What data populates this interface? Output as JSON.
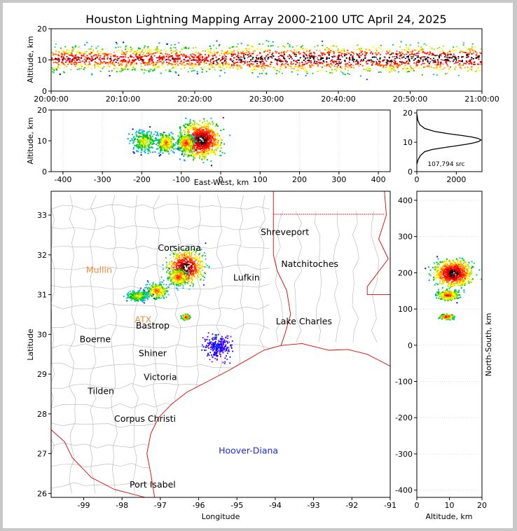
{
  "title": "Houston Lightning Mapping Array 2000-2100 UTC April 24, 2025",
  "colors": {
    "density": [
      "#7f00ff",
      "#0000ff",
      "#00a0ff",
      "#00d0a0",
      "#00c000",
      "#a0e000",
      "#ffff00",
      "#ffa000",
      "#ff4000",
      "#ff0000",
      "#c00000",
      "#000000",
      "#ffffff"
    ],
    "state_line": "#e00000",
    "county_line": "#b4b4b4",
    "city_orange": "#f08c3c",
    "city_blue": "#1e28dc",
    "city_gold": "#e6b400"
  },
  "chart_data": [
    {
      "type": "heatmap",
      "name": "altitude-time",
      "xlabel": "",
      "ylabel": "Altitude, km",
      "xticks": [
        "20:00:00",
        "20:10:00",
        "20:20:00",
        "20:30:00",
        "20:40:00",
        "20:50:00",
        "21:00:00"
      ],
      "xlim_minutes": [
        0,
        60
      ],
      "ylim": [
        0,
        20
      ],
      "yticks": [
        0,
        10,
        20
      ],
      "band_center_km": 10.5,
      "band_core_halfwidth_km": 2,
      "band_outer_halfwidth_km": 5.5
    },
    {
      "type": "heatmap",
      "name": "altitude-eastwest",
      "xlabel": "East-West, km",
      "ylabel": "Altitude, km",
      "xlim": [
        -430,
        430
      ],
      "xticks": [
        -400,
        -300,
        -200,
        -100,
        0,
        100,
        200,
        300,
        400
      ],
      "ylim": [
        0,
        20
      ],
      "yticks": [
        0,
        10,
        20
      ],
      "cells": [
        {
          "x": -50,
          "z": 10.5,
          "w": 45,
          "h": 6.5,
          "level": 12
        },
        {
          "x": -90,
          "z": 9.5,
          "w": 18,
          "h": 3,
          "level": 9
        },
        {
          "x": -140,
          "z": 9.5,
          "w": 20,
          "h": 3.5,
          "level": 8
        },
        {
          "x": -195,
          "z": 10,
          "w": 30,
          "h": 4,
          "level": 6
        }
      ]
    },
    {
      "type": "line",
      "name": "altitude-histogram",
      "xlim": [
        0,
        3300
      ],
      "xticks": [
        0,
        2000
      ],
      "ylim": [
        0,
        21
      ],
      "yticks": [
        0,
        10,
        20
      ],
      "x": [
        0,
        60,
        180,
        400,
        800,
        1400,
        2000,
        2500,
        2900,
        3150,
        3250,
        3100,
        2800,
        2300,
        1600,
        900,
        400,
        150,
        50,
        10
      ],
      "y": [
        2.5,
        4,
        5.5,
        6.8,
        7.6,
        8.2,
        8.8,
        9.3,
        9.8,
        10.3,
        10.8,
        11.3,
        11.8,
        12.3,
        12.9,
        13.7,
        14.7,
        16,
        17.5,
        19.5
      ],
      "annotation": "107,794 src"
    },
    {
      "type": "heatmap",
      "name": "plan-view-map",
      "xlabel": "Longitude",
      "ylabel": "Latitude",
      "xlim": [
        -99.85,
        -91
      ],
      "xticks": [
        -99,
        -98,
        -97,
        -96,
        -95,
        -94,
        -93,
        -92,
        -91
      ],
      "ylim": [
        25.9,
        33.6
      ],
      "yticks": [
        26,
        27,
        28,
        29,
        30,
        31,
        32,
        33
      ],
      "cities": [
        {
          "name": "Corsicana",
          "lon": -96.5,
          "lat": 32.1,
          "color": "#000000"
        },
        {
          "name": "Shreveport",
          "lon": -93.75,
          "lat": 32.5,
          "color": "#000000"
        },
        {
          "name": "Mullin",
          "lon": -98.6,
          "lat": 31.55,
          "color": "#f08c3c"
        },
        {
          "name": "Natchitoches",
          "lon": -93.1,
          "lat": 31.7,
          "color": "#000000"
        },
        {
          "name": "Lufkin",
          "lon": -94.75,
          "lat": 31.35,
          "color": "#000000"
        },
        {
          "name": "ATX",
          "lon": -97.45,
          "lat": 30.3,
          "color": "#f08c3c"
        },
        {
          "name": "Bastrop",
          "lon": -97.2,
          "lat": 30.15,
          "color": "#000000"
        },
        {
          "name": "Lake Charles",
          "lon": -93.25,
          "lat": 30.25,
          "color": "#000000"
        },
        {
          "name": "Boerne",
          "lon": -98.7,
          "lat": 29.8,
          "color": "#000000"
        },
        {
          "name": "Shiner",
          "lon": -97.2,
          "lat": 29.45,
          "color": "#000000"
        },
        {
          "name": "Victoria",
          "lon": -97.0,
          "lat": 28.85,
          "color": "#000000"
        },
        {
          "name": "Tilden",
          "lon": -98.55,
          "lat": 28.5,
          "color": "#000000"
        },
        {
          "name": "Corpus Christi",
          "lon": -97.4,
          "lat": 27.8,
          "color": "#000000"
        },
        {
          "name": "Hoover-Diana",
          "lon": -94.7,
          "lat": 27.0,
          "color": "#1e28dc"
        },
        {
          "name": "Port Isabel",
          "lon": -97.2,
          "lat": 26.15,
          "color": "#000000"
        }
      ],
      "cells": [
        {
          "lon": -96.35,
          "lat": 31.7,
          "w": 0.55,
          "h": 0.5,
          "level": 12
        },
        {
          "lon": -96.55,
          "lat": 31.45,
          "w": 0.3,
          "h": 0.25,
          "level": 9
        },
        {
          "lon": -97.1,
          "lat": 31.1,
          "w": 0.35,
          "h": 0.25,
          "level": 8
        },
        {
          "lon": -97.6,
          "lat": 30.98,
          "w": 0.35,
          "h": 0.17,
          "level": 6
        },
        {
          "lon": -96.35,
          "lat": 30.45,
          "w": 0.12,
          "h": 0.08,
          "level": 10
        },
        {
          "lon": -95.5,
          "lat": 29.7,
          "w": 0.4,
          "h": 0.35,
          "level": 1
        }
      ]
    },
    {
      "type": "heatmap",
      "name": "northsouth-altitude",
      "xlabel": "Altitude, km",
      "ylabel": "North-South, km",
      "xlim": [
        0,
        20
      ],
      "xticks": [
        0,
        10,
        20
      ],
      "ylim": [
        -420,
        425
      ],
      "yticks": [
        -400,
        -300,
        -200,
        -100,
        0,
        100,
        200,
        300,
        400
      ],
      "cells": [
        {
          "z": 11,
          "ns": 200,
          "dz": 7,
          "dns": 45,
          "level": 12
        },
        {
          "z": 9.5,
          "ns": 140,
          "dz": 4,
          "dns": 18,
          "level": 9
        },
        {
          "z": 9,
          "ns": 80,
          "dz": 2.5,
          "dns": 8,
          "level": 10
        }
      ]
    }
  ]
}
